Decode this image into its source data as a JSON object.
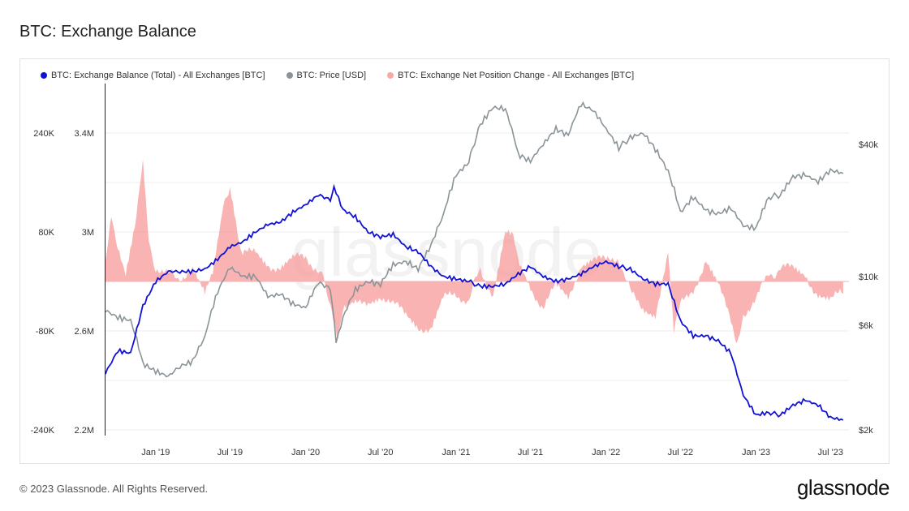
{
  "title": "BTC: Exchange Balance",
  "footer": {
    "copyright": "© 2023 Glassnode. All Rights Reserved.",
    "logo": "glassnode"
  },
  "watermark": "glassnode",
  "chart_data": {
    "type": "line",
    "title": "BTC: Exchange Balance",
    "x_range": [
      "2018-09-01",
      "2023-08-15"
    ],
    "x_ticks": [
      {
        "label": "Jan '19",
        "date": "2019-01-01"
      },
      {
        "label": "Jul '19",
        "date": "2019-07-01"
      },
      {
        "label": "Jan '20",
        "date": "2020-01-01"
      },
      {
        "label": "Jul '20",
        "date": "2020-07-01"
      },
      {
        "label": "Jan '21",
        "date": "2021-01-01"
      },
      {
        "label": "Jul '21",
        "date": "2021-07-01"
      },
      {
        "label": "Jan '22",
        "date": "2022-01-01"
      },
      {
        "label": "Jul '22",
        "date": "2022-07-01"
      },
      {
        "label": "Jan '23",
        "date": "2023-01-01"
      },
      {
        "label": "Jul '23",
        "date": "2023-07-01"
      }
    ],
    "axes": {
      "net_change": {
        "side": "left-outer",
        "ylim": [
          -240000,
          240000
        ],
        "ticks": [
          {
            "v": 240000,
            "label": "240K"
          },
          {
            "v": 80000,
            "label": "80K"
          },
          {
            "v": -80000,
            "label": "-80K"
          },
          {
            "v": -240000,
            "label": "-240K"
          }
        ]
      },
      "balance": {
        "side": "left-inner",
        "ylim": [
          2200000,
          3400000
        ],
        "ticks": [
          {
            "v": 3400000,
            "label": "3.4M"
          },
          {
            "v": 3000000,
            "label": "3M"
          },
          {
            "v": 2600000,
            "label": "2.6M"
          },
          {
            "v": 2200000,
            "label": "2.2M"
          }
        ]
      },
      "price": {
        "side": "right",
        "scale": "log",
        "ylim": [
          2000,
          70000
        ],
        "ticks": [
          {
            "v": 40000,
            "label": "$40k"
          },
          {
            "v": 10000,
            "label": "$10k"
          },
          {
            "v": 6000,
            "label": "$6k"
          },
          {
            "v": 2000,
            "label": "$2k"
          }
        ]
      }
    },
    "legend_position": "top-left",
    "series": [
      {
        "name": "BTC: Exchange Balance (Total) - All Exchanges [BTC]",
        "color": "#1212d4",
        "axis": "balance",
        "kind": "line",
        "points": [
          [
            "2018-09-01",
            2430000
          ],
          [
            "2018-10-01",
            2520000
          ],
          [
            "2018-11-01",
            2510000
          ],
          [
            "2018-12-01",
            2700000
          ],
          [
            "2019-01-01",
            2800000
          ],
          [
            "2019-02-01",
            2840000
          ],
          [
            "2019-03-01",
            2840000
          ],
          [
            "2019-04-01",
            2840000
          ],
          [
            "2019-05-01",
            2850000
          ],
          [
            "2019-06-01",
            2890000
          ],
          [
            "2019-07-01",
            2940000
          ],
          [
            "2019-08-01",
            2960000
          ],
          [
            "2019-09-01",
            3000000
          ],
          [
            "2019-10-01",
            3030000
          ],
          [
            "2019-11-01",
            3040000
          ],
          [
            "2019-12-01",
            3080000
          ],
          [
            "2020-01-01",
            3110000
          ],
          [
            "2020-02-01",
            3150000
          ],
          [
            "2020-03-01",
            3130000
          ],
          [
            "2020-03-10",
            3180000
          ],
          [
            "2020-04-01",
            3090000
          ],
          [
            "2020-05-01",
            3060000
          ],
          [
            "2020-06-01",
            3000000
          ],
          [
            "2020-07-01",
            2980000
          ],
          [
            "2020-08-01",
            2990000
          ],
          [
            "2020-09-01",
            2940000
          ],
          [
            "2020-10-01",
            2920000
          ],
          [
            "2020-11-01",
            2860000
          ],
          [
            "2020-12-01",
            2820000
          ],
          [
            "2021-01-01",
            2810000
          ],
          [
            "2021-02-01",
            2800000
          ],
          [
            "2021-03-01",
            2780000
          ],
          [
            "2021-04-01",
            2780000
          ],
          [
            "2021-05-01",
            2790000
          ],
          [
            "2021-06-01",
            2830000
          ],
          [
            "2021-07-01",
            2860000
          ],
          [
            "2021-08-01",
            2820000
          ],
          [
            "2021-09-01",
            2800000
          ],
          [
            "2021-10-01",
            2810000
          ],
          [
            "2021-11-01",
            2830000
          ],
          [
            "2021-12-01",
            2860000
          ],
          [
            "2022-01-01",
            2880000
          ],
          [
            "2022-02-01",
            2860000
          ],
          [
            "2022-03-01",
            2850000
          ],
          [
            "2022-04-01",
            2810000
          ],
          [
            "2022-05-01",
            2790000
          ],
          [
            "2022-06-01",
            2790000
          ],
          [
            "2022-07-01",
            2640000
          ],
          [
            "2022-08-01",
            2580000
          ],
          [
            "2022-09-01",
            2580000
          ],
          [
            "2022-10-01",
            2560000
          ],
          [
            "2022-11-01",
            2510000
          ],
          [
            "2022-12-01",
            2340000
          ],
          [
            "2023-01-01",
            2260000
          ],
          [
            "2023-02-01",
            2270000
          ],
          [
            "2023-03-01",
            2260000
          ],
          [
            "2023-04-01",
            2300000
          ],
          [
            "2023-05-01",
            2320000
          ],
          [
            "2023-06-01",
            2300000
          ],
          [
            "2023-07-01",
            2250000
          ],
          [
            "2023-08-01",
            2240000
          ]
        ]
      },
      {
        "name": "BTC: Price [USD]",
        "color": "#8a9498",
        "axis": "price",
        "kind": "line",
        "points": [
          [
            "2018-09-01",
            7000
          ],
          [
            "2018-10-01",
            6500
          ],
          [
            "2018-11-01",
            6300
          ],
          [
            "2018-12-01",
            4000
          ],
          [
            "2019-01-01",
            3700
          ],
          [
            "2019-02-01",
            3500
          ],
          [
            "2019-03-01",
            3900
          ],
          [
            "2019-04-01",
            4100
          ],
          [
            "2019-05-01",
            5300
          ],
          [
            "2019-06-01",
            8500
          ],
          [
            "2019-07-01",
            11000
          ],
          [
            "2019-08-01",
            10000
          ],
          [
            "2019-09-01",
            10000
          ],
          [
            "2019-10-01",
            8100
          ],
          [
            "2019-11-01",
            8300
          ],
          [
            "2019-12-01",
            7500
          ],
          [
            "2020-01-01",
            7200
          ],
          [
            "2020-02-01",
            9400
          ],
          [
            "2020-03-01",
            8800
          ],
          [
            "2020-03-15",
            5000
          ],
          [
            "2020-04-01",
            6500
          ],
          [
            "2020-05-01",
            8700
          ],
          [
            "2020-06-01",
            9500
          ],
          [
            "2020-07-01",
            9200
          ],
          [
            "2020-08-01",
            11300
          ],
          [
            "2020-09-01",
            11700
          ],
          [
            "2020-10-01",
            10800
          ],
          [
            "2020-11-01",
            13800
          ],
          [
            "2020-12-01",
            19000
          ],
          [
            "2021-01-01",
            29000
          ],
          [
            "2021-02-01",
            33000
          ],
          [
            "2021-03-01",
            49000
          ],
          [
            "2021-04-01",
            59000
          ],
          [
            "2021-05-01",
            58000
          ],
          [
            "2021-06-01",
            36000
          ],
          [
            "2021-07-01",
            33500
          ],
          [
            "2021-08-01",
            40000
          ],
          [
            "2021-09-01",
            47000
          ],
          [
            "2021-10-01",
            44000
          ],
          [
            "2021-11-01",
            61000
          ],
          [
            "2021-12-01",
            57000
          ],
          [
            "2022-01-01",
            47000
          ],
          [
            "2022-02-01",
            38500
          ],
          [
            "2022-03-01",
            43000
          ],
          [
            "2022-04-01",
            45000
          ],
          [
            "2022-05-01",
            38000
          ],
          [
            "2022-06-01",
            30000
          ],
          [
            "2022-07-01",
            19500
          ],
          [
            "2022-08-01",
            23000
          ],
          [
            "2022-09-01",
            20000
          ],
          [
            "2022-10-01",
            19300
          ],
          [
            "2022-11-01",
            20500
          ],
          [
            "2022-12-01",
            17000
          ],
          [
            "2023-01-01",
            16600
          ],
          [
            "2023-02-01",
            23000
          ],
          [
            "2023-03-01",
            23500
          ],
          [
            "2023-04-01",
            28500
          ],
          [
            "2023-05-01",
            29000
          ],
          [
            "2023-06-01",
            27000
          ],
          [
            "2023-07-01",
            30500
          ],
          [
            "2023-08-01",
            29500
          ]
        ]
      },
      {
        "name": "BTC: Exchange Net Position Change - All Exchanges [BTC]",
        "color": "#f79a9a",
        "axis": "net_change",
        "kind": "area",
        "points": [
          [
            "2018-09-01",
            40000
          ],
          [
            "2018-09-15",
            110000
          ],
          [
            "2018-10-01",
            60000
          ],
          [
            "2018-10-20",
            10000
          ],
          [
            "2018-11-15",
            100000
          ],
          [
            "2018-12-01",
            190000
          ],
          [
            "2018-12-15",
            60000
          ],
          [
            "2019-01-01",
            25000
          ],
          [
            "2019-02-01",
            10000
          ],
          [
            "2019-03-01",
            8000
          ],
          [
            "2019-04-01",
            15000
          ],
          [
            "2019-05-01",
            -25000
          ],
          [
            "2019-05-20",
            10000
          ],
          [
            "2019-06-15",
            120000
          ],
          [
            "2019-07-01",
            160000
          ],
          [
            "2019-07-15",
            100000
          ],
          [
            "2019-08-01",
            40000
          ],
          [
            "2019-09-01",
            50000
          ],
          [
            "2019-10-01",
            30000
          ],
          [
            "2019-11-01",
            20000
          ],
          [
            "2019-12-01",
            35000
          ],
          [
            "2020-01-01",
            40000
          ],
          [
            "2020-02-01",
            20000
          ],
          [
            "2020-03-01",
            -30000
          ],
          [
            "2020-03-20",
            -90000
          ],
          [
            "2020-04-01",
            -50000
          ],
          [
            "2020-05-01",
            -40000
          ],
          [
            "2020-06-01",
            -30000
          ],
          [
            "2020-07-01",
            -20000
          ],
          [
            "2020-08-01",
            -40000
          ],
          [
            "2020-09-01",
            -50000
          ],
          [
            "2020-10-01",
            -70000
          ],
          [
            "2020-11-01",
            -80000
          ],
          [
            "2020-12-01",
            -30000
          ],
          [
            "2021-01-01",
            -20000
          ],
          [
            "2021-02-01",
            -30000
          ],
          [
            "2021-03-01",
            20000
          ],
          [
            "2021-04-01",
            -20000
          ],
          [
            "2021-05-01",
            80000
          ],
          [
            "2021-05-20",
            70000
          ],
          [
            "2021-06-01",
            30000
          ],
          [
            "2021-07-01",
            -10000
          ],
          [
            "2021-08-01",
            -40000
          ],
          [
            "2021-09-01",
            -10000
          ],
          [
            "2021-10-01",
            -30000
          ],
          [
            "2021-11-01",
            30000
          ],
          [
            "2021-12-01",
            40000
          ],
          [
            "2022-01-01",
            30000
          ],
          [
            "2022-02-01",
            40000
          ],
          [
            "2022-03-01",
            -20000
          ],
          [
            "2022-04-01",
            -40000
          ],
          [
            "2022-05-01",
            -50000
          ],
          [
            "2022-06-01",
            40000
          ],
          [
            "2022-06-15",
            -80000
          ],
          [
            "2022-07-01",
            -40000
          ],
          [
            "2022-08-01",
            -10000
          ],
          [
            "2022-09-01",
            30000
          ],
          [
            "2022-10-01",
            -10000
          ],
          [
            "2022-11-01",
            -60000
          ],
          [
            "2022-11-15",
            -110000
          ],
          [
            "2022-12-01",
            -50000
          ],
          [
            "2023-01-01",
            -30000
          ],
          [
            "2023-02-01",
            10000
          ],
          [
            "2023-03-01",
            20000
          ],
          [
            "2023-04-01",
            20000
          ],
          [
            "2023-05-01",
            10000
          ],
          [
            "2023-06-01",
            -20000
          ],
          [
            "2023-07-01",
            -30000
          ],
          [
            "2023-08-01",
            -20000
          ]
        ]
      }
    ]
  }
}
